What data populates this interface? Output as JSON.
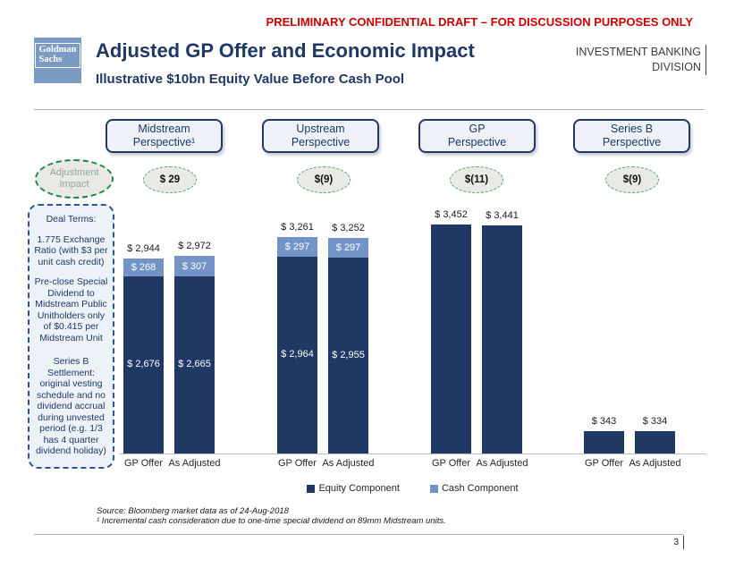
{
  "header": {
    "disclaimer": "PRELIMINARY CONFIDENTIAL DRAFT – FOR DISCUSSION PURPOSES ONLY",
    "logo_line1": "Goldman",
    "logo_line2": "Sachs",
    "title": "Adjusted GP Offer and Economic Impact",
    "subtitle": "Illustrative $10bn Equity Value Before Cash Pool",
    "division_line1": "INVESTMENT BANKING",
    "division_line2": "DIVISION"
  },
  "adjustment_row": {
    "label_line1": "Adjustment",
    "label_line2": "Impact"
  },
  "deal_terms": {
    "title": "Deal Terms:",
    "items": [
      "1.775 Exchange Ratio (with $3 per unit cash credit)",
      "Pre-close Special Dividend to Midstream Public Unitholders only of $0.415 per Midstream Unit",
      "Series B Settlement: original vesting schedule and no dividend accrual during unvested period (e.g. 1/3 has 4 quarter dividend holiday)"
    ]
  },
  "chart_data": {
    "type": "bar",
    "stacked": true,
    "ylim": [
      0,
      3500
    ],
    "categories": [
      "GP Offer",
      "As Adjusted"
    ],
    "legend": [
      {
        "label": "Equity Component",
        "color": "#1f3864"
      },
      {
        "label": "Cash Component",
        "color": "#7494c7"
      }
    ],
    "groups": [
      {
        "label_line1": "Midstream",
        "label_line2": "Perspective¹",
        "adjustment": "$ 29",
        "bars": [
          {
            "category": "GP Offer",
            "total": 2944,
            "total_label": "$ 2,944",
            "equity": 2676,
            "equity_label": "$ 2,676",
            "cash": 268,
            "cash_label": "$ 268"
          },
          {
            "category": "As Adjusted",
            "total": 2972,
            "total_label": "$ 2,972",
            "equity": 2665,
            "equity_label": "$ 2,665",
            "cash": 307,
            "cash_label": "$ 307"
          }
        ]
      },
      {
        "label_line1": "Upstream",
        "label_line2": "Perspective",
        "adjustment": "$(9)",
        "bars": [
          {
            "category": "GP Offer",
            "total": 3261,
            "total_label": "$ 3,261",
            "equity": 2964,
            "equity_label": "$ 2,964",
            "cash": 297,
            "cash_label": "$ 297"
          },
          {
            "category": "As Adjusted",
            "total": 3252,
            "total_label": "$ 3,252",
            "equity": 2955,
            "equity_label": "$ 2,955",
            "cash": 297,
            "cash_label": "$ 297"
          }
        ]
      },
      {
        "label_line1": "GP",
        "label_line2": "Perspective",
        "adjustment": "$(11)",
        "bars": [
          {
            "category": "GP Offer",
            "total": 3452,
            "total_label": "$ 3,452",
            "equity": 3452,
            "equity_label": null,
            "cash": 0,
            "cash_label": null
          },
          {
            "category": "As Adjusted",
            "total": 3441,
            "total_label": "$ 3,441",
            "equity": 3441,
            "equity_label": null,
            "cash": 0,
            "cash_label": null
          }
        ]
      },
      {
        "label_line1": "Series B",
        "label_line2": "Perspective",
        "adjustment": "$(9)",
        "bars": [
          {
            "category": "GP Offer",
            "total": 343,
            "total_label": "$ 343",
            "equity": 343,
            "equity_label": null,
            "cash": 0,
            "cash_label": null
          },
          {
            "category": "As Adjusted",
            "total": 334,
            "total_label": "$ 334",
            "equity": 334,
            "equity_label": null,
            "cash": 0,
            "cash_label": null
          }
        ]
      }
    ]
  },
  "footer": {
    "source": "Source: Bloomberg market data as of 24-Aug-2018",
    "footnote": "¹ Incremental cash consideration due to one-time special dividend on 89mm Midstream units.",
    "page_number": "3"
  }
}
